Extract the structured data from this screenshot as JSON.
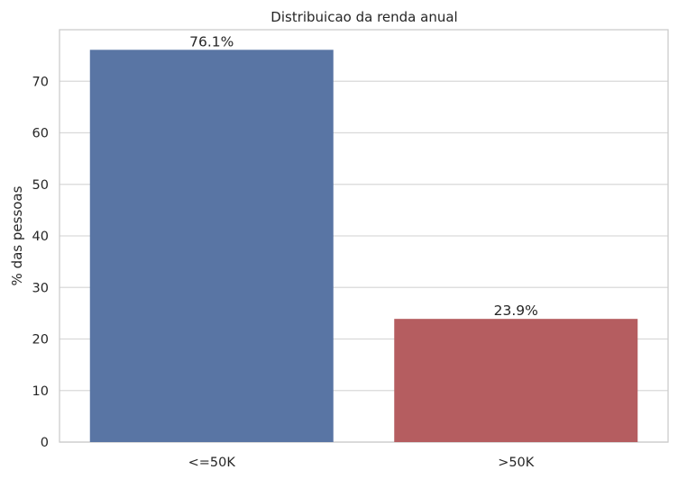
{
  "chart_data": {
    "type": "bar",
    "title": "Distribuicao da renda anual",
    "xlabel": "",
    "ylabel": "% das pessoas",
    "categories": [
      "<=50K",
      ">50K"
    ],
    "values": [
      76.1,
      23.9
    ],
    "data_labels": [
      "76.1%",
      "23.9%"
    ],
    "colors": [
      "#5975a4",
      "#b55d60"
    ],
    "ylim": [
      0,
      80
    ],
    "yticks": [
      0,
      10,
      20,
      30,
      40,
      50,
      60,
      70
    ],
    "ytick_labels": [
      "0",
      "10",
      "20",
      "30",
      "40",
      "50",
      "60",
      "70"
    ],
    "grid": true,
    "style": {
      "grid_color": "#d9d9d9",
      "frame_color": "#cccccc",
      "text_color": "#262626"
    }
  }
}
